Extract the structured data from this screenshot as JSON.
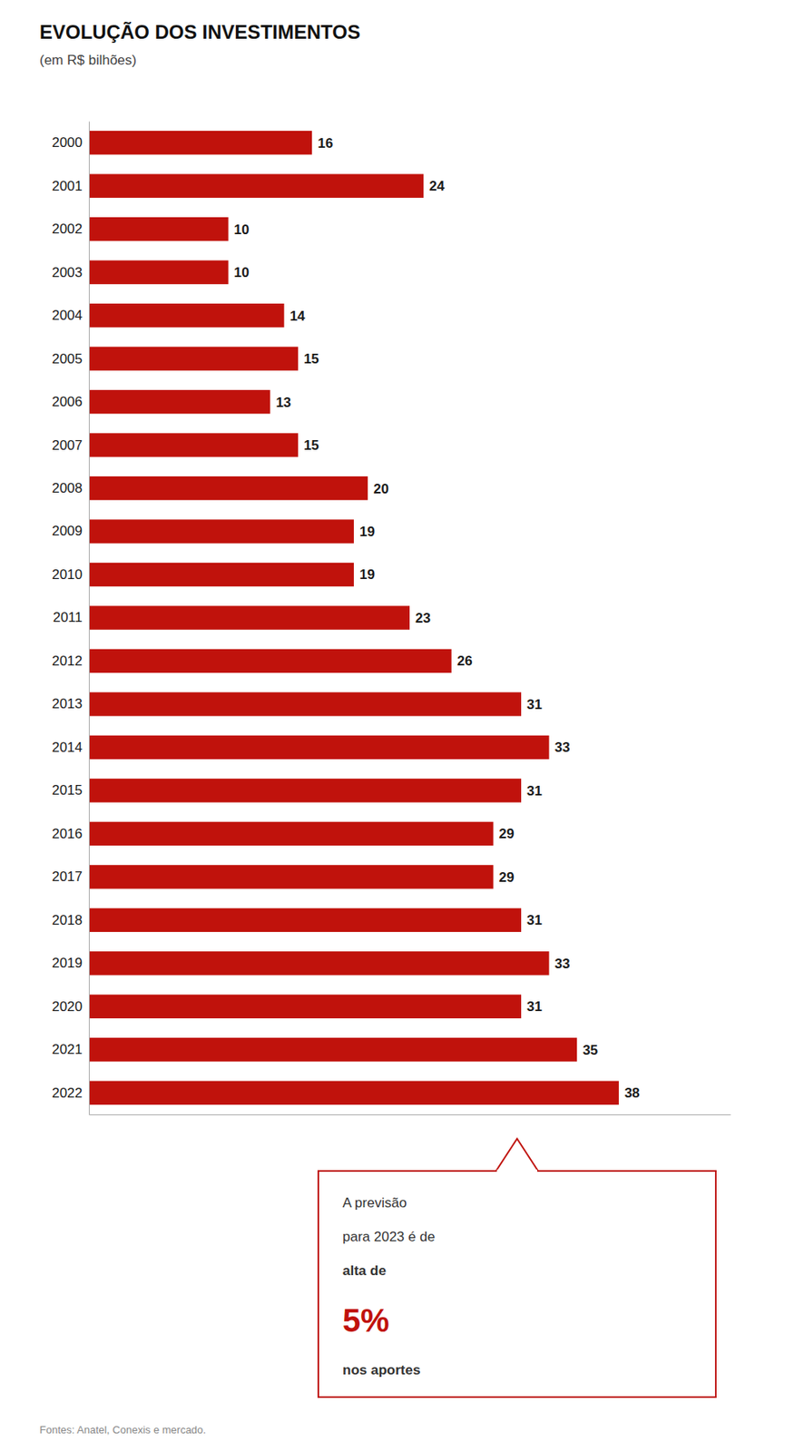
{
  "chart_data": {
    "type": "bar",
    "orientation": "horizontal",
    "title": "EVOLUÇÃO DOS INVESTIMENTOS",
    "subtitle": "(em R$ bilhões)",
    "categories": [
      "2000",
      "2001",
      "2002",
      "2003",
      "2004",
      "2005",
      "2006",
      "2007",
      "2008",
      "2009",
      "2010",
      "2011",
      "2012",
      "2013",
      "2014",
      "2015",
      "2016",
      "2017",
      "2018",
      "2019",
      "2020",
      "2021",
      "2022"
    ],
    "values": [
      16,
      24,
      10,
      10,
      14,
      15,
      13,
      15,
      20,
      19,
      19,
      23,
      26,
      31,
      33,
      31,
      29,
      29,
      31,
      33,
      31,
      35,
      38
    ],
    "color": "#c0120c",
    "xlim": [
      0,
      46
    ],
    "xticks": [],
    "grid": false,
    "data_labels": true,
    "tick_labels": "y",
    "annotations": [
      "A previsão",
      "para 2023 é de",
      "alta de",
      "5%",
      "nos aportes"
    ],
    "source": "Fontes: Anatel, Conexis e mercado."
  }
}
